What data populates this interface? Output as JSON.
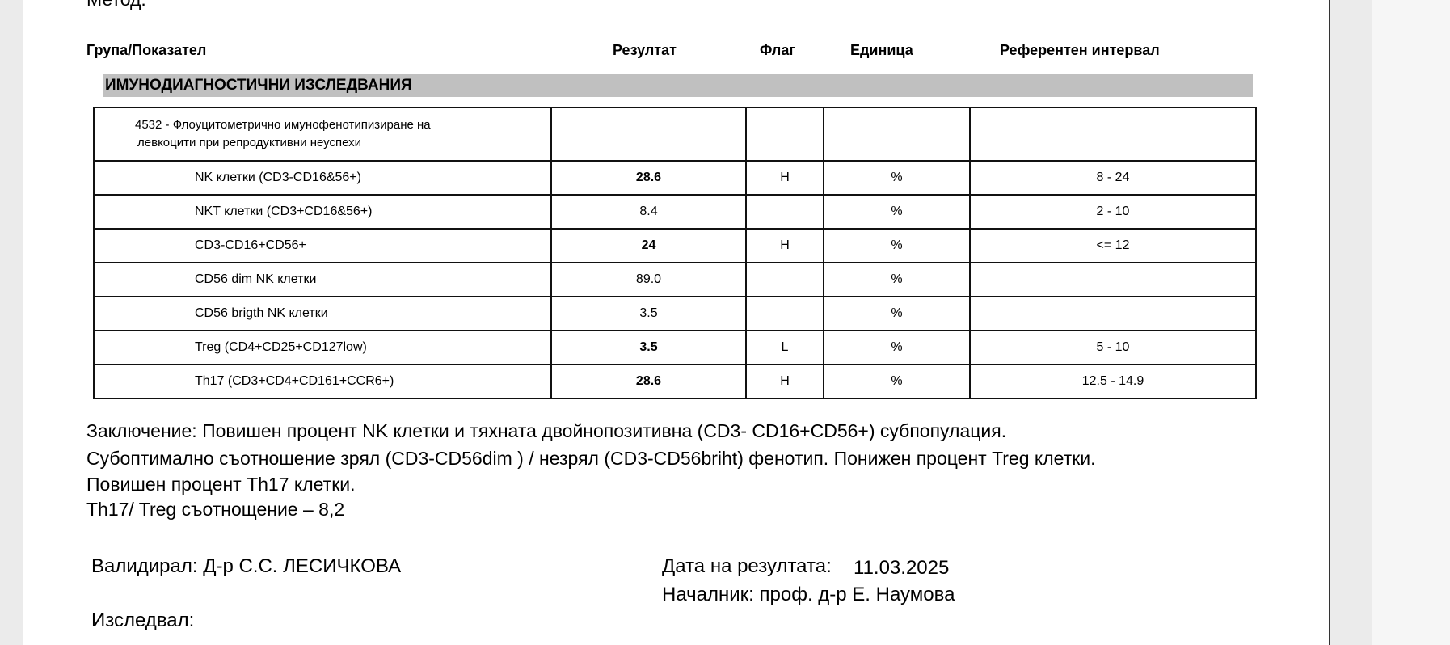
{
  "method_label": "Метод:",
  "header": [
    "Група/Показател",
    "Резултат",
    "Флаг",
    "Единица",
    "Референтен интервал"
  ],
  "section": "ИМУНОДИАГНОСТИЧНИ ИЗСЛЕДВАНИЯ",
  "table": {
    "test_name": [
      "4532 - Флоуцитометрично имунофенотипизиране на",
      "левкоцити при репродуктивни неуспехи"
    ],
    "rows": [
      [
        "NK клетки (CD3-CD16&56+)",
        "28.6",
        "H",
        "%",
        "8 - 24"
      ],
      [
        "NKT клетки (CD3+CD16&56+)",
        "8.4",
        null,
        "%",
        "2 - 10"
      ],
      [
        "CD3-CD16+CD56+",
        "24",
        "H",
        "%",
        "<= 12"
      ],
      [
        "CD56 dim NK клетки",
        "89.0",
        null,
        "%",
        null
      ],
      [
        "CD56 brigth NK клетки",
        "3.5",
        null,
        "%",
        null
      ],
      [
        "Treg (CD4+CD25+CD127low)",
        "3.5",
        "L",
        "%",
        "5 - 10"
      ],
      [
        "Th17 (CD3+CD4+CD161+CCR6+)",
        "28.6",
        "H",
        "%",
        "12.5 - 14.9"
      ]
    ]
  },
  "conclusion": [
    "Заключение: Повишен процент NK клетки и тяхната двойнопозитивна (CD3- CD16+CD56+) субпопулация.",
    "Субоптимално съотношение  зрял (CD3-CD56dim ) / незрял (CD3-CD56briht) фенотип. Понижен процент  Treg клетки.",
    "Повишен процент  Th17 клетки.",
    "Th17/ Treg съотнощение – 8,2"
  ],
  "validated": "Валидирал: Д-р С.С. ЛЕСИЧКОВА",
  "date_label": "Дата на резултата:",
  "date": "11.03.2025",
  "head": "Началник: проф. д-р Е. Наумова",
  "examined": "Изследвал:"
}
